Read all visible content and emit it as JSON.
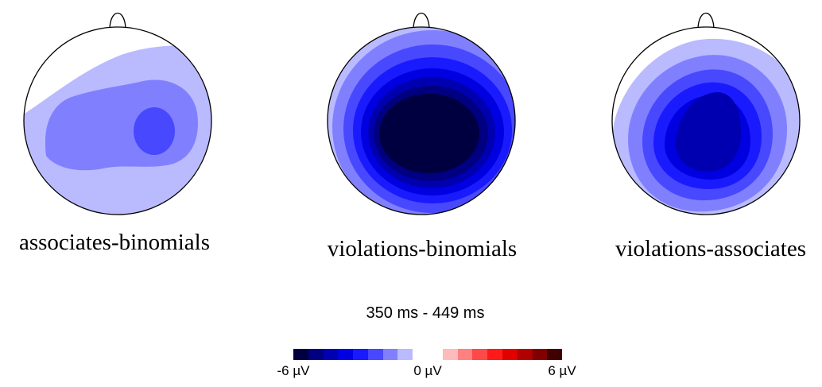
{
  "maps": [
    {
      "label": "associates-binomials",
      "contours": [
        {
          "level": 4,
          "color": "#4848FF"
        },
        {
          "level": 6,
          "color": "#8080FF"
        },
        {
          "level": 7,
          "color": "#BABAFF"
        }
      ]
    },
    {
      "label": "violations-binomials",
      "contours": [
        {
          "level": 0,
          "color": "#000040"
        },
        {
          "level": 1,
          "color": "#000080"
        },
        {
          "level": 2,
          "color": "#0000B0"
        },
        {
          "level": 3,
          "color": "#0000E0"
        },
        {
          "level": 4,
          "color": "#1A1AFF"
        },
        {
          "level": 5,
          "color": "#4848FF"
        },
        {
          "level": 6,
          "color": "#8080FF"
        },
        {
          "level": 7,
          "color": "#BABAFF"
        }
      ]
    },
    {
      "label": "violations-associates",
      "contours": [
        {
          "level": 2,
          "color": "#0000B0"
        },
        {
          "level": 3,
          "color": "#0000E0"
        },
        {
          "level": 4,
          "color": "#1A1AFF"
        },
        {
          "level": 5,
          "color": "#4848FF"
        },
        {
          "level": 6,
          "color": "#8080FF"
        },
        {
          "level": 7,
          "color": "#BABAFF"
        }
      ]
    }
  ],
  "time_window": "350 ms - 449 ms",
  "colorbar": {
    "min_label": "-6 µV",
    "mid_label": "0 µV",
    "max_label": "6 µV",
    "colors": [
      "#000040",
      "#000080",
      "#0000B0",
      "#0000E0",
      "#1A1AFF",
      "#4848FF",
      "#8080FF",
      "#BABAFF",
      "#FFFFFF",
      "#FFFFFF",
      "#FFBABA",
      "#FF8080",
      "#FF4848",
      "#FF1A1A",
      "#E00000",
      "#B00000",
      "#800000",
      "#400000"
    ]
  }
}
